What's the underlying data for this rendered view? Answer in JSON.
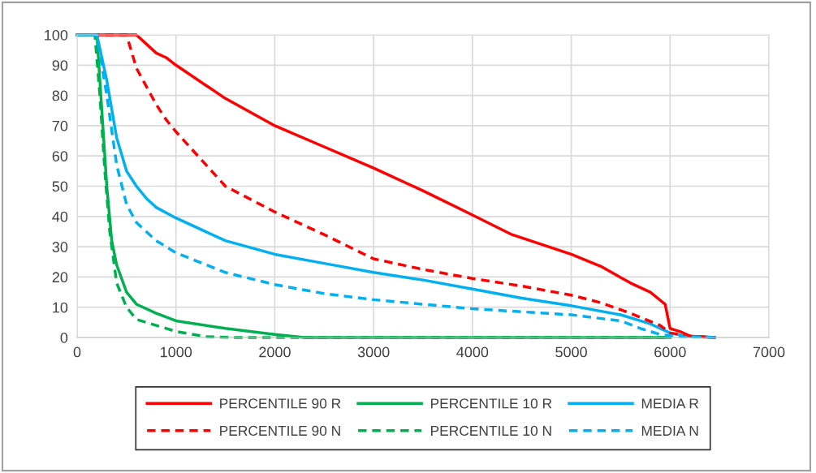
{
  "chart_data": {
    "type": "line",
    "xlim": [
      0,
      7000
    ],
    "ylim": [
      0,
      100
    ],
    "xticks": [
      0,
      1000,
      2000,
      3000,
      4000,
      5000,
      6000,
      7000
    ],
    "yticks": [
      0,
      10,
      20,
      30,
      40,
      50,
      60,
      70,
      80,
      90,
      100
    ],
    "grid": true,
    "legend": "bottom",
    "marker": "none",
    "series": [
      {
        "name": "PERCENTILE 90 R",
        "color": "#ff0000",
        "line_style": "solid",
        "x": [
          0,
          600,
          800,
          900,
          1000,
          1500,
          2000,
          2500,
          3000,
          3500,
          4000,
          4400,
          5000,
          5300,
          5600,
          5800,
          5950,
          6000,
          6100,
          6200,
          6450
        ],
        "values": [
          100,
          100,
          94,
          92.5,
          90,
          79,
          70,
          63,
          56,
          48.5,
          40.5,
          34,
          27.5,
          23.5,
          18,
          15,
          11,
          3,
          2,
          0.5,
          0
        ]
      },
      {
        "name": "PERCENTILE 10 R",
        "color": "#00b050",
        "line_style": "solid",
        "x": [
          0,
          200,
          250,
          300,
          350,
          400,
          500,
          600,
          800,
          1000,
          1500,
          2000,
          2300,
          6000
        ],
        "values": [
          100,
          100,
          75,
          50,
          32,
          24,
          15,
          11,
          8,
          5.5,
          3,
          1,
          0,
          0
        ]
      },
      {
        "name": "MEDIA R",
        "color": "#00b0f0",
        "line_style": "solid",
        "x": [
          0,
          200,
          300,
          400,
          500,
          600,
          700,
          800,
          1000,
          1500,
          2000,
          2500,
          3000,
          3500,
          4000,
          4500,
          5000,
          5500,
          5800,
          6000,
          6200,
          6450
        ],
        "values": [
          100,
          100,
          85,
          66,
          55,
          50,
          46,
          43,
          39.5,
          32,
          27.5,
          24.5,
          21.5,
          19,
          16,
          13,
          10.5,
          7.5,
          4.5,
          1.5,
          0.3,
          0
        ]
      },
      {
        "name": "PERCENTILE 90 N",
        "color": "#ff0000",
        "line_style": "dashed",
        "x": [
          0,
          500,
          600,
          800,
          900,
          1000,
          1500,
          2000,
          2500,
          3000,
          3500,
          4000,
          4500,
          5000,
          5300,
          5600,
          5900,
          6000,
          6200,
          6450
        ],
        "values": [
          100,
          100,
          89,
          77,
          72,
          68,
          50,
          41.5,
          34,
          26,
          22.5,
          19.5,
          17,
          14,
          11.5,
          8,
          4,
          1.5,
          0.5,
          0
        ]
      },
      {
        "name": "PERCENTILE 10 N",
        "color": "#00b050",
        "line_style": "dashed",
        "x": [
          0,
          180,
          230,
          280,
          330,
          400,
          500,
          600,
          800,
          1000,
          1300,
          1600,
          6000
        ],
        "values": [
          100,
          100,
          80,
          55,
          35,
          18,
          10,
          6,
          4,
          2,
          0.3,
          0,
          0
        ]
      },
      {
        "name": "MEDIA N",
        "color": "#00b0f0",
        "line_style": "dashed",
        "x": [
          0,
          200,
          300,
          400,
          500,
          600,
          800,
          1000,
          1500,
          2000,
          2500,
          3000,
          3500,
          4000,
          4500,
          5000,
          5500,
          5700,
          5900,
          6100,
          6450
        ],
        "values": [
          100,
          100,
          80,
          57,
          44,
          38,
          32,
          28,
          21.5,
          17.5,
          14.5,
          12.5,
          11,
          9.5,
          8.5,
          7.5,
          5.5,
          3,
          1,
          0.3,
          0
        ]
      }
    ]
  }
}
